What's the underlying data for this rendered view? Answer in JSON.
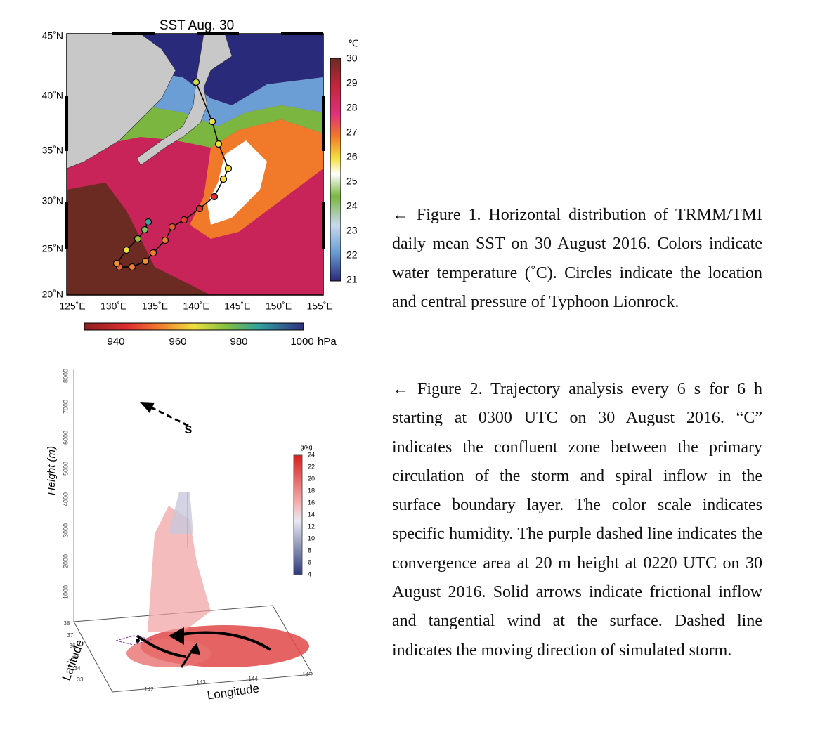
{
  "figure1": {
    "title": "SST Aug. 30",
    "lat_labels": [
      "45˚N",
      "40˚N",
      "35˚N",
      "30˚N",
      "25˚N",
      "20˚N"
    ],
    "lon_labels": [
      "125˚E",
      "130˚E",
      "135˚E",
      "140˚E",
      "145˚E",
      "150˚E",
      "155˚E"
    ],
    "sst_unit": "℃",
    "sst_ticks": [
      "30",
      "29",
      "28",
      "27",
      "26",
      "25",
      "24",
      "23",
      "22",
      "21"
    ],
    "pressure_ticks": [
      "940",
      "960",
      "980",
      "1000"
    ],
    "pressure_unit": "hPa"
  },
  "figure2": {
    "height_label": "Height (m)",
    "height_ticks": [
      "1000",
      "2000",
      "3000",
      "4000",
      "5000",
      "6000",
      "7000",
      "8000"
    ],
    "lat_label": "Latitude",
    "lat_ticks": [
      "38",
      "37",
      "36",
      "35",
      "34",
      "33"
    ],
    "lon_label": "Longitude",
    "lon_ticks": [
      "142",
      "143",
      "144",
      "145"
    ],
    "humidity_unit": "g/kg",
    "humidity_ticks": [
      "24",
      "22",
      "20",
      "18",
      "16",
      "14",
      "12",
      "10",
      "8",
      "6",
      "4"
    ],
    "storm_symbol": "S"
  },
  "captions": [
    "← Figure 1. Horizontal distribution of TRMM/TMI daily mean SST on 30 August 2016. Colors indicate water temperature (˚C). Circles indicate the location and central pressure of Typhoon Lionrock.",
    "← Figure 2. Trajectory analysis every 6 s for 6 h starting at 0300 UTC on 30 August 2016. “C” indicates the confluent zone between the primary circulation of the storm and spiral inflow in the surface boundary layer. The color scale indicates specific humidity. The purple dashed line indicates the convergence area at 20 m height at 0220 UTC on 30 August 2016. Solid arrows indicate frictional inflow and tangential wind at the surface. Dashed line indicates the moving direction of simulated storm."
  ]
}
